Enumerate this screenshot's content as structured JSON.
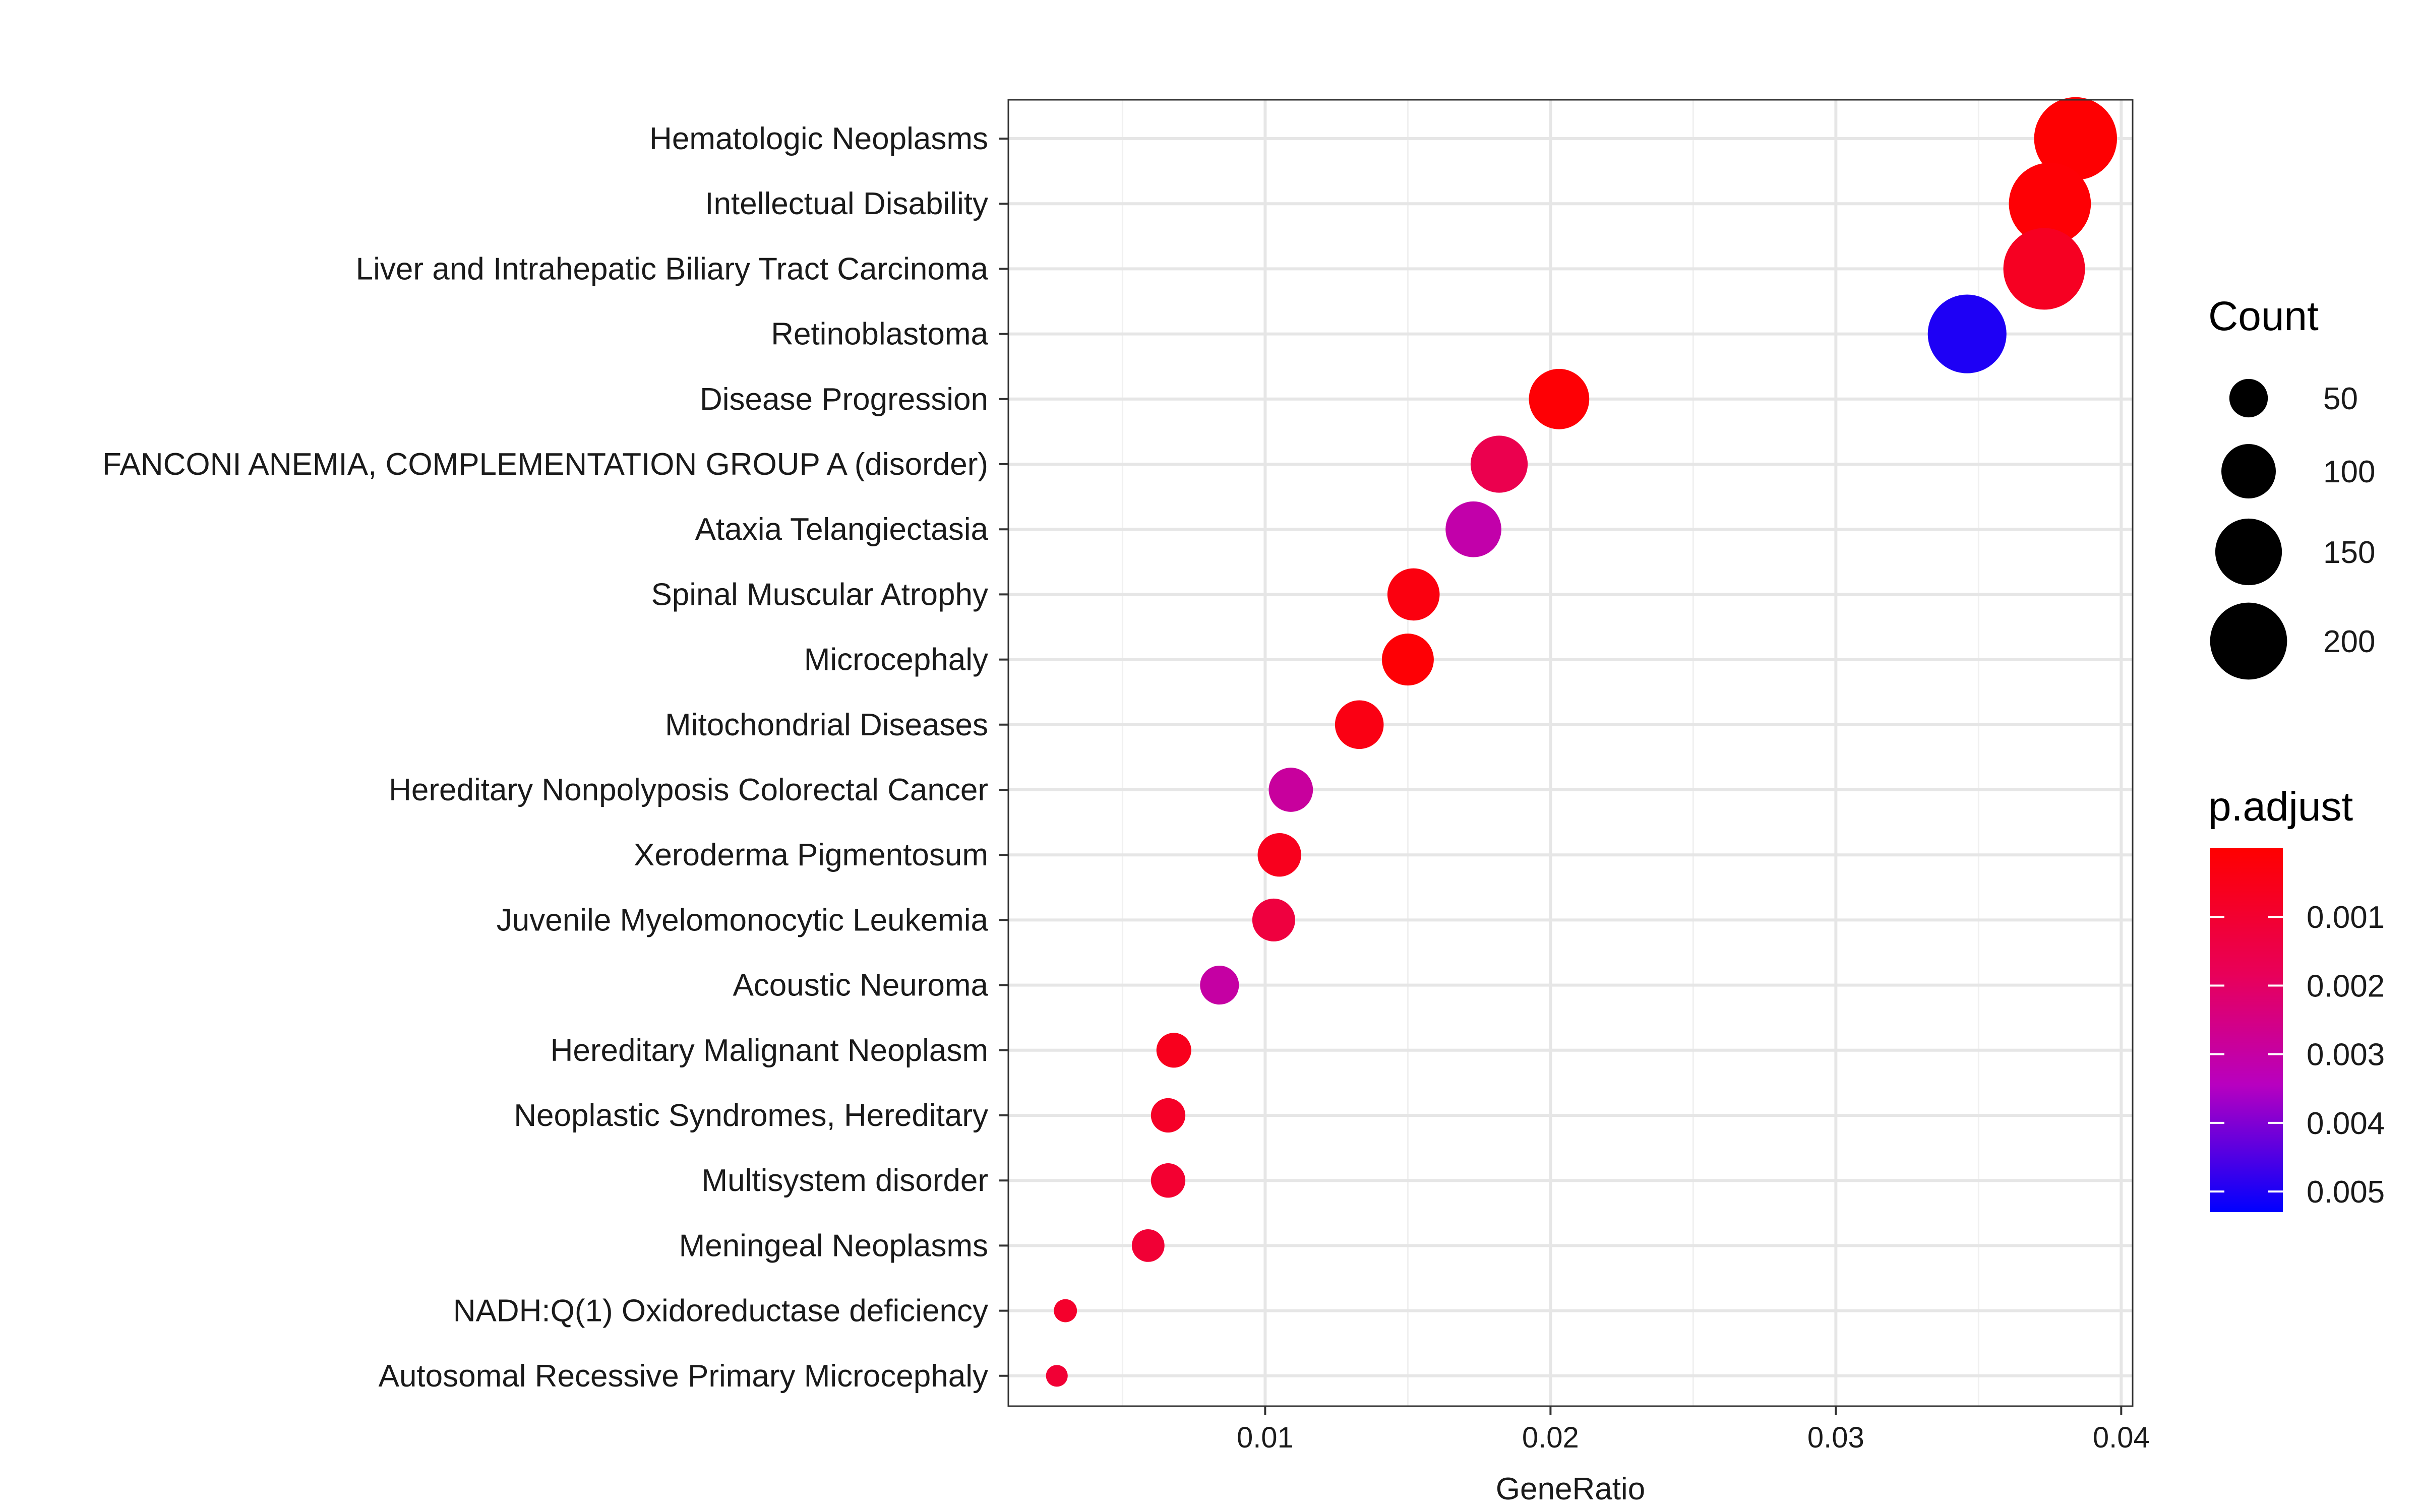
{
  "chart_data": {
    "type": "scatter",
    "title": "",
    "xlabel": "GeneRatio",
    "ylabel": "",
    "xlim": [
      0.001,
      0.0404
    ],
    "x_ticks": [
      {
        "value": 0.01,
        "label": "0.01"
      },
      {
        "value": 0.02,
        "label": "0.02"
      },
      {
        "value": 0.03,
        "label": "0.03"
      },
      {
        "value": 0.04,
        "label": "0.04"
      }
    ],
    "grid": true,
    "categories": [
      "Hematologic Neoplasms",
      "Intellectual Disability",
      "Liver and Intrahepatic Biliary Tract Carcinoma",
      "Retinoblastoma",
      "Disease Progression",
      "FANCONI ANEMIA, COMPLEMENTATION GROUP A (disorder)",
      "Ataxia Telangiectasia",
      "Spinal Muscular Atrophy",
      "Microcephaly",
      "Mitochondrial Diseases",
      "Hereditary Nonpolyposis Colorectal Cancer",
      "Xeroderma Pigmentosum",
      "Juvenile Myelomonocytic Leukemia",
      "Acoustic Neuroma",
      "Hereditary Malignant Neoplasm",
      "Neoplastic Syndromes, Hereditary",
      "Multisystem disorder",
      "Meningeal Neoplasms",
      "NADH:Q(1) Oxidoreductase deficiency",
      "Autosomal Recessive Primary Microcephaly"
    ],
    "points": [
      {
        "category": "Hematologic Neoplasms",
        "gene_ratio": 0.0384,
        "count": 232,
        "p_adjust": 5e-05
      },
      {
        "category": "Intellectual Disability",
        "gene_ratio": 0.0375,
        "count": 227,
        "p_adjust": 0.0001
      },
      {
        "category": "Liver and Intrahepatic Biliary Tract Carcinoma",
        "gene_ratio": 0.0373,
        "count": 225,
        "p_adjust": 0.0007
      },
      {
        "category": "Retinoblastoma",
        "gene_ratio": 0.0346,
        "count": 209,
        "p_adjust": 0.005
      },
      {
        "category": "Disease Progression",
        "gene_ratio": 0.0203,
        "count": 123,
        "p_adjust": 0.0001
      },
      {
        "category": "FANCONI ANEMIA, COMPLEMENTATION GROUP A (disorder)",
        "gene_ratio": 0.0182,
        "count": 110,
        "p_adjust": 0.0016
      },
      {
        "category": "Ataxia Telangiectasia",
        "gene_ratio": 0.0173,
        "count": 105,
        "p_adjust": 0.0031
      },
      {
        "category": "Spinal Muscular Atrophy",
        "gene_ratio": 0.0152,
        "count": 92,
        "p_adjust": 0.0003
      },
      {
        "category": "Microcephaly",
        "gene_ratio": 0.015,
        "count": 91,
        "p_adjust": 0.0001
      },
      {
        "category": "Mitochondrial Diseases",
        "gene_ratio": 0.0133,
        "count": 80,
        "p_adjust": 0.0004
      },
      {
        "category": "Hereditary Nonpolyposis Colorectal Cancer",
        "gene_ratio": 0.0109,
        "count": 66,
        "p_adjust": 0.0029
      },
      {
        "category": "Xeroderma Pigmentosum",
        "gene_ratio": 0.0105,
        "count": 64,
        "p_adjust": 0.0006
      },
      {
        "category": "Juvenile Myelomonocytic Leukemia",
        "gene_ratio": 0.0103,
        "count": 62,
        "p_adjust": 0.0013
      },
      {
        "category": "Acoustic Neuroma",
        "gene_ratio": 0.0084,
        "count": 51,
        "p_adjust": 0.003
      },
      {
        "category": "Hereditary Malignant Neoplasm",
        "gene_ratio": 0.0068,
        "count": 41,
        "p_adjust": 0.0006
      },
      {
        "category": "Neoplastic Syndromes, Hereditary",
        "gene_ratio": 0.0066,
        "count": 40,
        "p_adjust": 0.0008
      },
      {
        "category": "Multisystem disorder",
        "gene_ratio": 0.0066,
        "count": 40,
        "p_adjust": 0.001
      },
      {
        "category": "Meningeal Neoplasms",
        "gene_ratio": 0.0059,
        "count": 36,
        "p_adjust": 0.0011
      },
      {
        "category": "NADH:Q(1) Oxidoreductase deficiency",
        "gene_ratio": 0.003,
        "count": 18,
        "p_adjust": 0.0009
      },
      {
        "category": "Autosomal Recessive Primary Microcephaly",
        "gene_ratio": 0.0027,
        "count": 16,
        "p_adjust": 0.0011
      }
    ],
    "size_legend": {
      "title": "Count",
      "values": [
        50,
        100,
        150,
        200
      ],
      "labels": [
        "50",
        "100",
        "150",
        "200"
      ]
    },
    "color_legend": {
      "title": "p.adjust",
      "range": [
        0,
        0.0053
      ],
      "low_color": "#ff0000",
      "high_color": "#0000ff",
      "ticks": [
        {
          "value": 0.001,
          "label": "0.001"
        },
        {
          "value": 0.002,
          "label": "0.002"
        },
        {
          "value": 0.003,
          "label": "0.003"
        },
        {
          "value": 0.004,
          "label": "0.004"
        },
        {
          "value": 0.005,
          "label": "0.005"
        }
      ]
    }
  }
}
